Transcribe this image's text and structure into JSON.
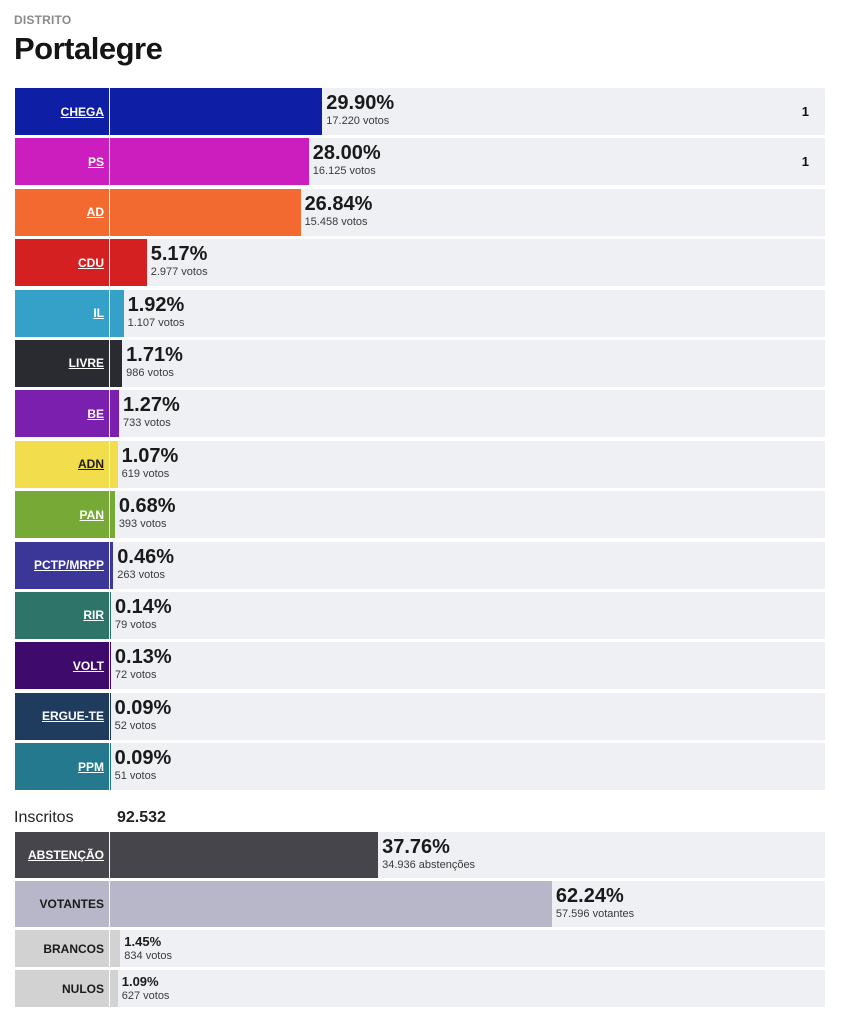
{
  "header": {
    "kicker": "DISTRITO",
    "title": "Portalegre"
  },
  "chart_data": {
    "type": "bar",
    "title": "Portalegre",
    "subtitle": "DISTRITO",
    "xlim": [
      0,
      100
    ],
    "parties": [
      {
        "name": "CHEGA",
        "pct": 29.9,
        "pct_label": "29.90%",
        "votes_label": "17.220 votos",
        "seats": "1",
        "color": "#0e1fa6",
        "text_color": "#ffffff"
      },
      {
        "name": "PS",
        "pct": 28.0,
        "pct_label": "28.00%",
        "votes_label": "16.125 votos",
        "seats": "1",
        "color": "#cc1dbf",
        "text_color": "#ffffff"
      },
      {
        "name": "AD",
        "pct": 26.84,
        "pct_label": "26.84%",
        "votes_label": "15.458 votos",
        "color": "#f26a30",
        "text_color": "#ffffff"
      },
      {
        "name": "CDU",
        "pct": 5.17,
        "pct_label": "5.17%",
        "votes_label": "2.977 votos",
        "color": "#d42020",
        "text_color": "#ffffff"
      },
      {
        "name": "IL",
        "pct": 1.92,
        "pct_label": "1.92%",
        "votes_label": "1.107 votos",
        "color": "#35a0c8",
        "text_color": "#ffffff"
      },
      {
        "name": "LIVRE",
        "pct": 1.71,
        "pct_label": "1.71%",
        "votes_label": "986 votos",
        "color": "#2a2b31",
        "text_color": "#ffffff"
      },
      {
        "name": "BE",
        "pct": 1.27,
        "pct_label": "1.27%",
        "votes_label": "733 votos",
        "color": "#7a1fae",
        "text_color": "#ffffff"
      },
      {
        "name": "ADN",
        "pct": 1.07,
        "pct_label": "1.07%",
        "votes_label": "619 votos",
        "color": "#f2dd4c",
        "text_color": "#1a1a1a"
      },
      {
        "name": "PAN",
        "pct": 0.68,
        "pct_label": "0.68%",
        "votes_label": "393 votos",
        "color": "#76a935",
        "text_color": "#ffffff"
      },
      {
        "name": "PCTP/MRPP",
        "pct": 0.46,
        "pct_label": "0.46%",
        "votes_label": "263 votos",
        "color": "#3b3798",
        "text_color": "#ffffff"
      },
      {
        "name": "RIR",
        "pct": 0.14,
        "pct_label": "0.14%",
        "votes_label": "79 votos",
        "color": "#2e7468",
        "text_color": "#ffffff"
      },
      {
        "name": "VOLT",
        "pct": 0.13,
        "pct_label": "0.13%",
        "votes_label": "72 votos",
        "color": "#3e0a6b",
        "text_color": "#ffffff"
      },
      {
        "name": "ERGUE-TE",
        "pct": 0.09,
        "pct_label": "0.09%",
        "votes_label": "52 votos",
        "color": "#1f3c5e",
        "text_color": "#ffffff"
      },
      {
        "name": "PPM",
        "pct": 0.09,
        "pct_label": "0.09%",
        "votes_label": "51 votos",
        "color": "#24798f",
        "text_color": "#ffffff"
      }
    ],
    "registered": {
      "label": "Inscritos",
      "value": "92.532"
    },
    "turnout": [
      {
        "name": "ABSTENÇÃO",
        "pct": 37.76,
        "pct_label": "37.76%",
        "votes_label": "34.936 abstenções",
        "color": "#45454b",
        "text_color": "#ffffff",
        "size": "big",
        "underline": true
      },
      {
        "name": "VOTANTES",
        "pct": 62.24,
        "pct_label": "62.24%",
        "votes_label": "57.596 votantes",
        "color": "#b8b7c9",
        "text_color": "#1a1a1a",
        "size": "big",
        "underline": false
      },
      {
        "name": "BRANCOS",
        "pct": 1.45,
        "pct_label": "1.45%",
        "votes_label": "834 votos",
        "color": "#d2d2d2",
        "text_color": "#1a1a1a",
        "size": "small",
        "underline": false
      },
      {
        "name": "NULOS",
        "pct": 1.09,
        "pct_label": "1.09%",
        "votes_label": "627 votos",
        "color": "#d2d2d2",
        "text_color": "#1a1a1a",
        "size": "small",
        "underline": false
      }
    ]
  }
}
